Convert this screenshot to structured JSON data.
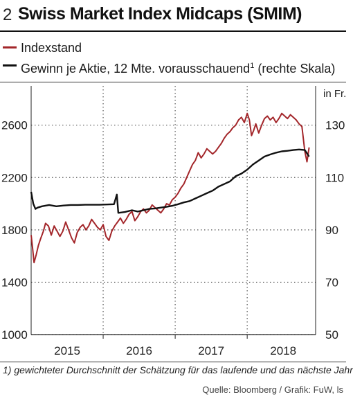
{
  "header": {
    "number": "2",
    "title": "Swiss Market Index Midcaps (SMIM)"
  },
  "legend": {
    "items": [
      {
        "label": "Indexstand",
        "color": "#a3262a"
      },
      {
        "label": "Gewinn je Aktie, 12 Mte. vorausschauend",
        "footnote_mark": "1",
        "suffix": " (rechte Skala)",
        "color": "#111111"
      }
    ]
  },
  "chart_data": {
    "type": "line",
    "right_axis_unit": "in Fr.",
    "y_left": {
      "ticks": [
        1000,
        1400,
        1800,
        2200,
        2600
      ],
      "range": [
        1000,
        2900
      ]
    },
    "y_right": {
      "ticks": [
        50,
        70,
        90,
        110,
        130
      ],
      "range": [
        50,
        145
      ]
    },
    "x_labels": [
      "2015",
      "2016",
      "2017",
      "2018"
    ],
    "x_range": [
      2015.0,
      2018.95
    ],
    "grid": true,
    "series": [
      {
        "name": "Indexstand",
        "axis": "left",
        "color": "#a3262a",
        "points": [
          [
            2015.0,
            1760
          ],
          [
            2015.02,
            1660
          ],
          [
            2015.04,
            1550
          ],
          [
            2015.07,
            1610
          ],
          [
            2015.1,
            1680
          ],
          [
            2015.13,
            1730
          ],
          [
            2015.17,
            1790
          ],
          [
            2015.2,
            1850
          ],
          [
            2015.24,
            1830
          ],
          [
            2015.28,
            1760
          ],
          [
            2015.32,
            1830
          ],
          [
            2015.36,
            1790
          ],
          [
            2015.4,
            1750
          ],
          [
            2015.44,
            1790
          ],
          [
            2015.48,
            1860
          ],
          [
            2015.52,
            1800
          ],
          [
            2015.56,
            1740
          ],
          [
            2015.6,
            1700
          ],
          [
            2015.64,
            1780
          ],
          [
            2015.68,
            1820
          ],
          [
            2015.72,
            1840
          ],
          [
            2015.76,
            1800
          ],
          [
            2015.8,
            1830
          ],
          [
            2015.84,
            1880
          ],
          [
            2015.88,
            1850
          ],
          [
            2015.92,
            1820
          ],
          [
            2015.96,
            1800
          ],
          [
            2016.0,
            1840
          ],
          [
            2016.04,
            1750
          ],
          [
            2016.08,
            1720
          ],
          [
            2016.12,
            1790
          ],
          [
            2016.16,
            1830
          ],
          [
            2016.2,
            1860
          ],
          [
            2016.24,
            1890
          ],
          [
            2016.28,
            1850
          ],
          [
            2016.32,
            1880
          ],
          [
            2016.36,
            1920
          ],
          [
            2016.4,
            1940
          ],
          [
            2016.44,
            1870
          ],
          [
            2016.48,
            1900
          ],
          [
            2016.52,
            1940
          ],
          [
            2016.56,
            1960
          ],
          [
            2016.6,
            1930
          ],
          [
            2016.64,
            1950
          ],
          [
            2016.68,
            1990
          ],
          [
            2016.72,
            1970
          ],
          [
            2016.76,
            1950
          ],
          [
            2016.8,
            1930
          ],
          [
            2016.84,
            1960
          ],
          [
            2016.88,
            2000
          ],
          [
            2016.92,
            1990
          ],
          [
            2016.96,
            2030
          ],
          [
            2017.0,
            2050
          ],
          [
            2017.04,
            2080
          ],
          [
            2017.08,
            2120
          ],
          [
            2017.12,
            2150
          ],
          [
            2017.16,
            2200
          ],
          [
            2017.2,
            2250
          ],
          [
            2017.24,
            2300
          ],
          [
            2017.28,
            2330
          ],
          [
            2017.32,
            2390
          ],
          [
            2017.36,
            2350
          ],
          [
            2017.4,
            2380
          ],
          [
            2017.44,
            2420
          ],
          [
            2017.48,
            2400
          ],
          [
            2017.52,
            2380
          ],
          [
            2017.56,
            2400
          ],
          [
            2017.6,
            2430
          ],
          [
            2017.64,
            2460
          ],
          [
            2017.68,
            2500
          ],
          [
            2017.72,
            2530
          ],
          [
            2017.76,
            2550
          ],
          [
            2017.8,
            2580
          ],
          [
            2017.84,
            2600
          ],
          [
            2017.88,
            2640
          ],
          [
            2017.92,
            2660
          ],
          [
            2017.96,
            2620
          ],
          [
            2018.0,
            2690
          ],
          [
            2018.03,
            2640
          ],
          [
            2018.06,
            2520
          ],
          [
            2018.09,
            2560
          ],
          [
            2018.12,
            2610
          ],
          [
            2018.16,
            2540
          ],
          [
            2018.2,
            2600
          ],
          [
            2018.24,
            2650
          ],
          [
            2018.28,
            2670
          ],
          [
            2018.32,
            2640
          ],
          [
            2018.36,
            2660
          ],
          [
            2018.4,
            2620
          ],
          [
            2018.44,
            2650
          ],
          [
            2018.48,
            2690
          ],
          [
            2018.52,
            2670
          ],
          [
            2018.56,
            2650
          ],
          [
            2018.6,
            2680
          ],
          [
            2018.64,
            2660
          ],
          [
            2018.68,
            2640
          ],
          [
            2018.72,
            2610
          ],
          [
            2018.76,
            2590
          ],
          [
            2018.8,
            2400
          ],
          [
            2018.83,
            2320
          ],
          [
            2018.86,
            2430
          ]
        ]
      },
      {
        "name": "Gewinn je Aktie, 12 Mte. vorausschauend",
        "axis": "right",
        "color": "#111111",
        "points": [
          [
            2015.0,
            104.5
          ],
          [
            2015.03,
            100.0
          ],
          [
            2015.06,
            98.0
          ],
          [
            2015.09,
            98.5
          ],
          [
            2015.15,
            99.0
          ],
          [
            2015.25,
            99.5
          ],
          [
            2015.35,
            99.0
          ],
          [
            2015.45,
            99.3
          ],
          [
            2015.55,
            99.5
          ],
          [
            2015.65,
            99.5
          ],
          [
            2015.75,
            99.6
          ],
          [
            2015.85,
            99.6
          ],
          [
            2015.95,
            99.6
          ],
          [
            2016.05,
            99.7
          ],
          [
            2016.15,
            99.8
          ],
          [
            2016.19,
            103.5
          ],
          [
            2016.21,
            96.5
          ],
          [
            2016.3,
            96.8
          ],
          [
            2016.4,
            97.5
          ],
          [
            2016.48,
            97.0
          ],
          [
            2016.56,
            97.5
          ],
          [
            2016.64,
            98.0
          ],
          [
            2016.72,
            98.2
          ],
          [
            2016.8,
            98.5
          ],
          [
            2016.88,
            98.8
          ],
          [
            2016.96,
            99.2
          ],
          [
            2017.04,
            99.8
          ],
          [
            2017.12,
            100.5
          ],
          [
            2017.2,
            101.0
          ],
          [
            2017.28,
            102.0
          ],
          [
            2017.36,
            103.0
          ],
          [
            2017.44,
            104.0
          ],
          [
            2017.52,
            105.0
          ],
          [
            2017.6,
            106.5
          ],
          [
            2017.68,
            107.5
          ],
          [
            2017.76,
            108.5
          ],
          [
            2017.84,
            110.5
          ],
          [
            2017.92,
            111.5
          ],
          [
            2018.0,
            113.0
          ],
          [
            2018.08,
            115.0
          ],
          [
            2018.16,
            116.5
          ],
          [
            2018.24,
            118.0
          ],
          [
            2018.32,
            118.8
          ],
          [
            2018.4,
            119.5
          ],
          [
            2018.48,
            120.0
          ],
          [
            2018.56,
            120.2
          ],
          [
            2018.64,
            120.5
          ],
          [
            2018.72,
            120.7
          ],
          [
            2018.8,
            120.5
          ],
          [
            2018.86,
            118.0
          ]
        ]
      }
    ]
  },
  "footnote": "1) gewichteter Durchschnitt der Schätzung für das laufende und das nächste Jahr",
  "source": "Quelle: Bloomberg / Grafik: FuW, ls"
}
